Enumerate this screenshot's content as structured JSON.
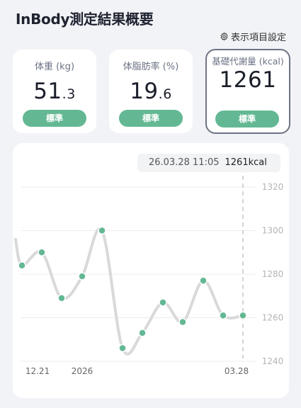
{
  "header": {
    "title": "InBody測定結果概要",
    "settings_label": "表示項目設定",
    "settings_icon": "gear-icon"
  },
  "cards": [
    {
      "label": "体重 (kg)",
      "int": "51",
      "dec": ".3",
      "status": "標準",
      "selected": false
    },
    {
      "label": "体脂肪率 (%)",
      "int": "19",
      "dec": ".6",
      "status": "標準",
      "selected": false
    },
    {
      "label": "基礎代謝量 (kcal)",
      "int": "1261",
      "dec": "",
      "status": "標準",
      "selected": true
    }
  ],
  "tooltip": {
    "date": "26.03.28 11:05",
    "value": "1261kcal"
  },
  "colors": {
    "accent": "#63b893",
    "line": "#d9d9d9",
    "selected_border": "#6d7485"
  },
  "chart_data": {
    "type": "line",
    "title": "",
    "ylim": [
      1240,
      1320
    ],
    "y_ticks": [
      "1320",
      "1300",
      "1280",
      "1260",
      "1240"
    ],
    "x_tick_labels": [
      "12.21",
      "2026",
      "03.28"
    ],
    "values": [
      1284,
      1290,
      1269,
      1279,
      1300,
      1246,
      1253,
      1267,
      1258,
      1277,
      1261,
      1261
    ],
    "series_name": "基礎代謝量 (kcal)",
    "grid": true
  }
}
